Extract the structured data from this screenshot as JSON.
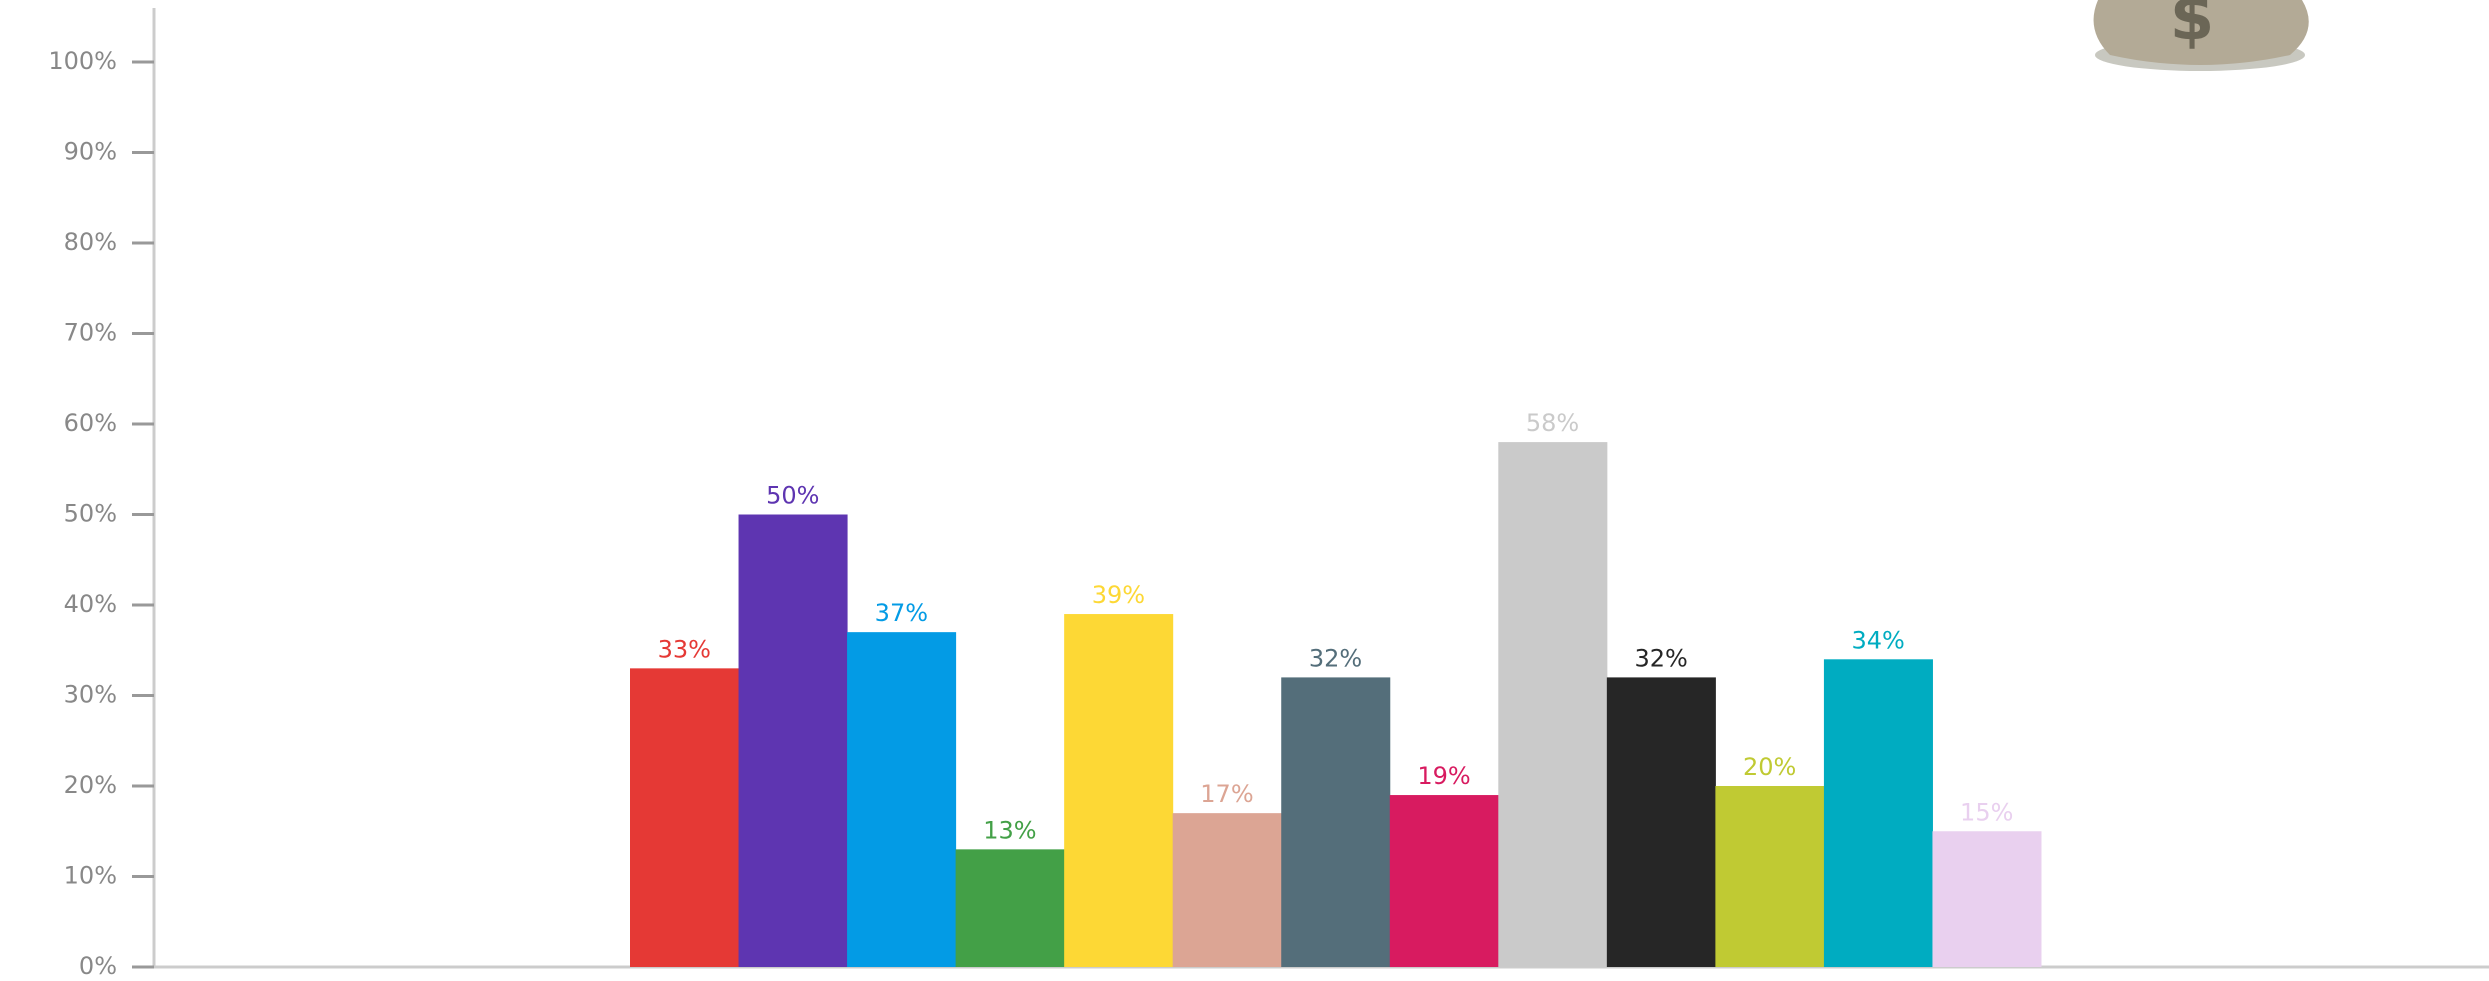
{
  "chart_data": {
    "type": "bar",
    "values": [
      33,
      50,
      37,
      13,
      39,
      17,
      32,
      19,
      58,
      32,
      20,
      34,
      15
    ],
    "value_labels": [
      "33%",
      "50%",
      "37%",
      "13%",
      "39%",
      "17%",
      "32%",
      "19%",
      "58%",
      "32%",
      "20%",
      "34%",
      "15%"
    ],
    "colors": [
      "#e53935",
      "#5e35b1",
      "#039be5",
      "#43a047",
      "#fdd835",
      "#dca594",
      "#546e7a",
      "#d81b60",
      "#cacaca",
      "#262626",
      "#c0ca33",
      "#00acc1",
      "#e9d0ef"
    ],
    "ylim": [
      0,
      100
    ],
    "yticks": [
      {
        "value": 0,
        "label": "0%"
      },
      {
        "value": 10,
        "label": "10%"
      },
      {
        "value": 20,
        "label": "20%"
      },
      {
        "value": 30,
        "label": "30%"
      },
      {
        "value": 40,
        "label": "40%"
      },
      {
        "value": 50,
        "label": "50%"
      },
      {
        "value": 60,
        "label": "60%"
      },
      {
        "value": 70,
        "label": "70%"
      },
      {
        "value": 80,
        "label": "80%"
      },
      {
        "value": 90,
        "label": "90%"
      },
      {
        "value": 100,
        "label": "100%"
      }
    ]
  }
}
